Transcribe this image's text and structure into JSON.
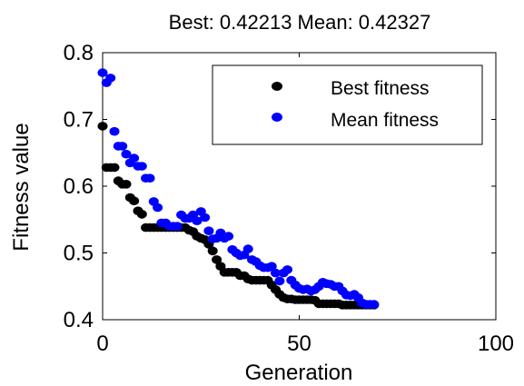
{
  "chart_data": {
    "type": "scatter",
    "title": "Best: 0.42213 Mean: 0.42327",
    "xlabel": "Generation",
    "ylabel": "Fitness value",
    "xlim": [
      0,
      100
    ],
    "ylim": [
      0.4,
      0.8
    ],
    "xticks": [
      0,
      50,
      100
    ],
    "yticks": [
      0.4,
      0.5,
      0.6,
      0.7,
      0.8
    ],
    "grid": false,
    "legend_position": "top-right",
    "series": [
      {
        "name": "Best fitness",
        "color": "#000000",
        "x": [
          0,
          1,
          2,
          3,
          4,
          5,
          6,
          7,
          8,
          9,
          10,
          11,
          12,
          13,
          14,
          15,
          16,
          17,
          18,
          19,
          20,
          21,
          22,
          23,
          24,
          25,
          26,
          27,
          28,
          29,
          30,
          31,
          32,
          33,
          34,
          35,
          36,
          37,
          38,
          39,
          40,
          41,
          42,
          43,
          44,
          45,
          46,
          47,
          48,
          49,
          50,
          51,
          52,
          53,
          54,
          55,
          56,
          57,
          58,
          59,
          60,
          61,
          62,
          63,
          64,
          65,
          66,
          67,
          68,
          69
        ],
        "values": [
          0.69,
          0.628,
          0.628,
          0.628,
          0.608,
          0.603,
          0.603,
          0.583,
          0.578,
          0.563,
          0.558,
          0.538,
          0.538,
          0.538,
          0.538,
          0.538,
          0.538,
          0.538,
          0.538,
          0.538,
          0.538,
          0.538,
          0.534,
          0.532,
          0.525,
          0.522,
          0.52,
          0.513,
          0.503,
          0.49,
          0.48,
          0.471,
          0.471,
          0.471,
          0.471,
          0.466,
          0.466,
          0.461,
          0.459,
          0.459,
          0.459,
          0.459,
          0.459,
          0.452,
          0.445,
          0.438,
          0.433,
          0.431,
          0.431,
          0.43,
          0.43,
          0.43,
          0.43,
          0.43,
          0.429,
          0.424,
          0.424,
          0.424,
          0.424,
          0.424,
          0.424,
          0.422,
          0.422,
          0.422,
          0.422,
          0.422,
          0.422,
          0.422,
          0.422,
          0.422
        ]
      },
      {
        "name": "Mean fitness",
        "color": "#0000ff",
        "x": [
          0,
          1,
          2,
          3,
          4,
          5,
          6,
          7,
          8,
          9,
          10,
          11,
          12,
          13,
          14,
          15,
          16,
          17,
          18,
          19,
          20,
          21,
          22,
          23,
          24,
          25,
          26,
          27,
          28,
          29,
          30,
          31,
          32,
          33,
          34,
          35,
          36,
          37,
          38,
          39,
          40,
          41,
          42,
          43,
          44,
          45,
          46,
          47,
          48,
          49,
          50,
          51,
          52,
          53,
          54,
          55,
          56,
          57,
          58,
          59,
          60,
          61,
          62,
          63,
          64,
          65,
          66,
          67,
          68,
          69
        ],
        "values": [
          0.77,
          0.755,
          0.762,
          0.682,
          0.66,
          0.66,
          0.648,
          0.635,
          0.642,
          0.63,
          0.63,
          0.612,
          0.612,
          0.577,
          0.568,
          0.545,
          0.545,
          0.54,
          0.54,
          0.54,
          0.557,
          0.552,
          0.552,
          0.557,
          0.548,
          0.562,
          0.553,
          0.533,
          0.521,
          0.522,
          0.53,
          0.522,
          0.525,
          0.505,
          0.5,
          0.496,
          0.497,
          0.506,
          0.49,
          0.487,
          0.481,
          0.478,
          0.478,
          0.48,
          0.47,
          0.458,
          0.47,
          0.475,
          0.459,
          0.452,
          0.447,
          0.445,
          0.446,
          0.443,
          0.445,
          0.45,
          0.456,
          0.454,
          0.453,
          0.45,
          0.45,
          0.443,
          0.437,
          0.436,
          0.438,
          0.433,
          0.425,
          0.423,
          0.423,
          0.423
        ]
      }
    ]
  }
}
